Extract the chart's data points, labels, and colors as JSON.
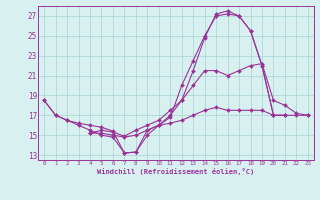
{
  "xlabel": "Windchill (Refroidissement éolien,°C)",
  "background_color": "#d8f0f0",
  "grid_color": "#b0d8d8",
  "line_color": "#993399",
  "xlim": [
    -0.5,
    23.5
  ],
  "ylim": [
    12.5,
    28.0
  ],
  "yticks": [
    13,
    15,
    17,
    19,
    21,
    23,
    25,
    27
  ],
  "xticks": [
    0,
    1,
    2,
    3,
    4,
    5,
    6,
    7,
    8,
    9,
    10,
    11,
    12,
    13,
    14,
    15,
    16,
    17,
    18,
    19,
    20,
    21,
    22,
    23
  ],
  "series": [
    {
      "x": [
        0,
        1,
        2,
        3,
        4,
        5,
        6,
        7,
        8,
        9,
        10,
        11,
        12,
        13,
        14,
        15,
        16,
        17,
        18,
        19,
        20,
        21
      ],
      "y": [
        18.5,
        17.0,
        16.5,
        16.0,
        15.5,
        15.0,
        14.8,
        13.2,
        13.3,
        15.5,
        16.0,
        17.0,
        18.5,
        21.5,
        24.8,
        27.2,
        27.5,
        27.0,
        25.5,
        22.0,
        17.0,
        17.0
      ]
    },
    {
      "x": [
        0,
        1,
        2,
        3,
        4,
        5,
        6,
        7,
        8,
        9,
        10,
        11,
        12,
        13,
        14,
        15,
        16,
        17,
        18,
        19,
        20,
        21
      ],
      "y": [
        18.5,
        17.0,
        16.5,
        16.2,
        16.0,
        15.8,
        15.4,
        13.2,
        13.3,
        15.0,
        16.0,
        16.8,
        20.0,
        22.5,
        25.0,
        27.0,
        27.2,
        27.0,
        25.5,
        22.0,
        17.0,
        17.0
      ]
    },
    {
      "x": [
        4,
        5,
        6,
        7,
        8,
        9,
        10,
        11,
        12,
        13,
        14,
        15,
        16,
        17,
        18,
        19,
        20,
        21,
        22,
        23
      ],
      "y": [
        15.2,
        15.5,
        15.3,
        14.9,
        15.5,
        16.0,
        16.5,
        17.5,
        18.5,
        20.0,
        21.5,
        21.5,
        21.0,
        21.5,
        22.0,
        22.2,
        18.5,
        18.0,
        17.2,
        17.0
      ]
    },
    {
      "x": [
        4,
        5,
        6,
        7,
        8,
        9,
        10,
        11,
        12,
        13,
        14,
        15,
        16,
        17,
        18,
        19,
        20,
        21,
        22,
        23
      ],
      "y": [
        15.2,
        15.2,
        15.0,
        14.8,
        15.0,
        15.5,
        16.0,
        16.2,
        16.5,
        17.0,
        17.5,
        17.8,
        17.5,
        17.5,
        17.5,
        17.5,
        17.0,
        17.0,
        17.0,
        17.0
      ]
    }
  ]
}
